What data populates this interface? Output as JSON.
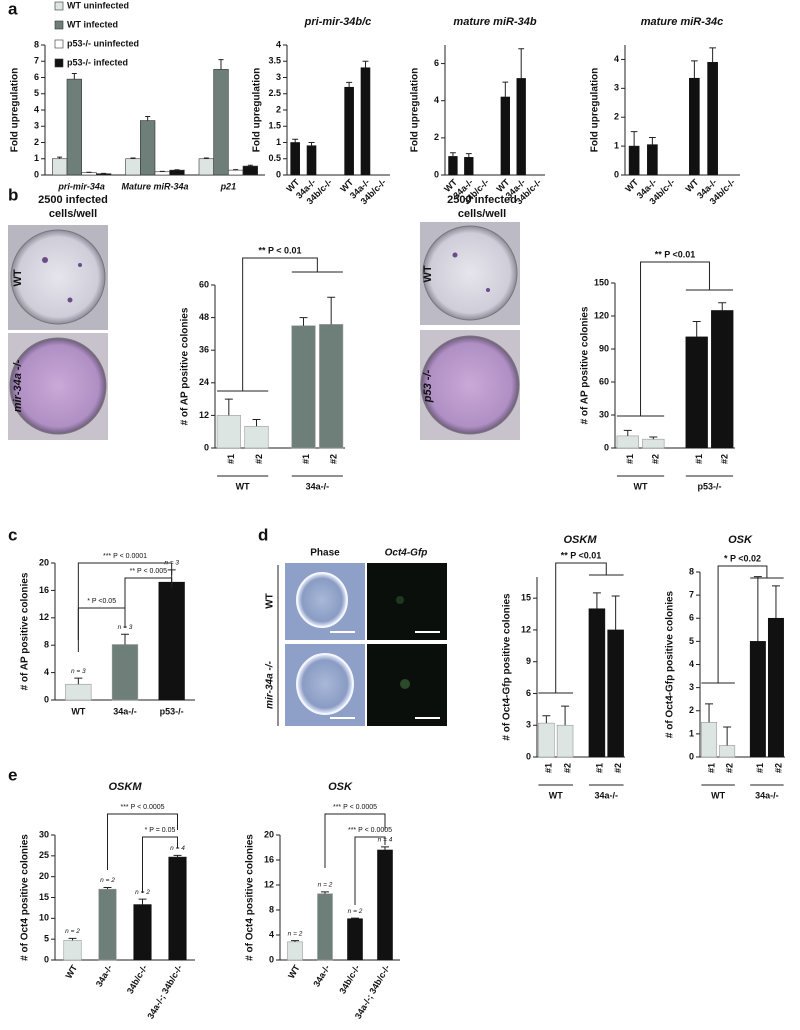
{
  "panels": [
    "a",
    "b",
    "c",
    "d",
    "e"
  ],
  "image_texts": {
    "b_left_title": [
      "2500 infected",
      "cells/well"
    ],
    "b_left_rows": [
      "WT",
      "mir-34a -/-"
    ],
    "b_right_title": [
      "2500 infected",
      "cells/well"
    ],
    "b_right_rows": [
      "WT",
      "p53 -/-"
    ],
    "d_columns": [
      "Phase",
      "Oct4-Gfp"
    ],
    "d_rows": [
      "WT",
      "mir-34a -/-"
    ]
  },
  "chart_data": [
    {
      "type": "grouped_bar",
      "ylabel": "Fold upregulation",
      "categories": [
        "pri-mir-34a",
        "Mature miR-34a",
        "p21"
      ],
      "series": [
        {
          "name": "WT uninfected",
          "color": "#dde5e3",
          "values": [
            1.0,
            1.0,
            1.0
          ],
          "errors": [
            0.1,
            0.05,
            0.05
          ]
        },
        {
          "name": "WT infected",
          "color": "#6e7e79",
          "values": [
            5.9,
            3.35,
            6.5
          ],
          "errors": [
            0.35,
            0.25,
            0.6
          ]
        },
        {
          "name": "p53-/- uninfected",
          "color": "#ffffff",
          "values": [
            0.15,
            0.2,
            0.3
          ],
          "errors": [
            0.02,
            0.02,
            0.03
          ]
        },
        {
          "name": "p53-/- infected",
          "color": "#111111",
          "values": [
            0.08,
            0.3,
            0.55
          ],
          "errors": [
            0.02,
            0.02,
            0.05
          ]
        }
      ],
      "legend": "upper left",
      "ylim": [
        0,
        8
      ],
      "yticks": [
        0,
        1,
        2,
        3,
        4,
        5,
        6,
        7,
        8
      ]
    },
    {
      "type": "bar",
      "title": "pri-mir-34b/c",
      "ylabel": "Fold upregulation",
      "categories": [
        "WT",
        "34a-/-",
        "34b/c-/-",
        "WT",
        "34a-/-",
        "34b/c-/-"
      ],
      "values": [
        1.0,
        0.9,
        0,
        2.7,
        3.3,
        0
      ],
      "errors": [
        0.1,
        0.1,
        0,
        0.15,
        0.2,
        0
      ],
      "colors": [
        "#111111",
        "#111111",
        "#111111",
        "#111111",
        "#111111",
        "#111111"
      ],
      "ylim": [
        0,
        4
      ],
      "yticks": [
        0,
        0.5,
        1,
        1.5,
        2,
        2.5,
        3,
        3.5,
        4
      ]
    },
    {
      "type": "bar",
      "title": "mature miR-34b",
      "ylabel": "Fold upregulation",
      "categories": [
        "WT",
        "34a-/-",
        "34b/c-/-",
        "WT",
        "34a-/-",
        "34b/c-/-"
      ],
      "values": [
        1.0,
        0.95,
        0,
        4.2,
        5.2,
        0
      ],
      "errors": [
        0.2,
        0.2,
        0,
        0.8,
        1.6,
        0
      ],
      "colors": [
        "#111111",
        "#111111",
        "#111111",
        "#111111",
        "#111111",
        "#111111"
      ],
      "ylim": [
        0,
        7
      ],
      "yticks": [
        0,
        2,
        4,
        6
      ]
    },
    {
      "type": "bar",
      "title": "mature miR-34c",
      "ylabel": "Fold upregulation",
      "categories": [
        "WT",
        "34a-/-",
        "34b/c-/-",
        "WT",
        "34a-/-",
        "34b/c-/-"
      ],
      "values": [
        1.0,
        1.05,
        0,
        3.35,
        3.9,
        0
      ],
      "errors": [
        0.5,
        0.25,
        0,
        0.6,
        0.5,
        0
      ],
      "colors": [
        "#111111",
        "#111111",
        "#111111",
        "#111111",
        "#111111",
        "#111111"
      ],
      "ylim": [
        0,
        4.5
      ],
      "yticks": [
        0,
        1,
        2,
        3,
        4
      ]
    },
    {
      "type": "bar",
      "ylabel": "# of AP positive colonies",
      "categories": [
        "#1",
        "#2",
        "#1",
        "#2"
      ],
      "groups": [
        "WT",
        "34a-/-"
      ],
      "values": [
        12,
        8,
        45,
        45.5
      ],
      "errors": [
        6,
        2.5,
        3,
        10
      ],
      "colors": [
        "#dde5e3",
        "#dde5e3",
        "#6e7e79",
        "#6e7e79"
      ],
      "annotations": [
        "** P < 0.01"
      ],
      "ylim": [
        0,
        60
      ],
      "yticks": [
        0,
        12,
        24,
        36,
        48,
        60
      ]
    },
    {
      "type": "bar",
      "ylabel": "# of AP positive colonies",
      "categories": [
        "#1",
        "#2",
        "#1",
        "#2"
      ],
      "groups": [
        "WT",
        "p53-/-"
      ],
      "values": [
        11,
        8,
        101,
        125
      ],
      "errors": [
        5,
        2,
        14,
        7
      ],
      "colors": [
        "#dde5e3",
        "#dde5e3",
        "#111111",
        "#111111"
      ],
      "annotations": [
        "** P <0.01"
      ],
      "ylim": [
        0,
        150
      ],
      "yticks": [
        0,
        30,
        60,
        90,
        120,
        150
      ]
    },
    {
      "type": "bar",
      "ylabel": "# of AP positive colonies",
      "categories": [
        "WT",
        "34a-/-",
        "p53-/-"
      ],
      "values": [
        2.3,
        8.1,
        17.2
      ],
      "errors": [
        0.9,
        1.5,
        1.8
      ],
      "n_labels": [
        "n = 3",
        "n = 3",
        "n = 3"
      ],
      "colors": [
        "#dde5e3",
        "#6e7e79",
        "#111111"
      ],
      "annotations": [
        "*** P < 0.0001",
        "** P < 0.005",
        "* P <0.05"
      ],
      "ylim": [
        0,
        20
      ],
      "yticks": [
        0,
        4,
        8,
        12,
        16,
        20
      ]
    },
    {
      "type": "bar",
      "title": "OSKM",
      "ylabel": "# of Oct4-Gfp positive colonies",
      "categories": [
        "#1",
        "#2",
        "#1",
        "#2"
      ],
      "groups": [
        "WT",
        "34a-/-"
      ],
      "values": [
        3.2,
        3.0,
        14,
        12
      ],
      "errors": [
        0.7,
        1.8,
        1.5,
        3.2
      ],
      "colors": [
        "#dde5e3",
        "#dde5e3",
        "#111111",
        "#111111"
      ],
      "annotations": [
        "** P <0.01"
      ],
      "ylim": [
        0,
        17
      ],
      "yticks": [
        0,
        3,
        6,
        9,
        12,
        15
      ]
    },
    {
      "type": "bar",
      "title": "OSK",
      "ylabel": "# of Oct4-Gfp positive colonies",
      "categories": [
        "#1",
        "#2",
        "#1",
        "#2"
      ],
      "groups": [
        "WT",
        "34a-/-"
      ],
      "values": [
        1.5,
        0.5,
        5,
        6
      ],
      "errors": [
        0.8,
        0.8,
        2.8,
        1.4
      ],
      "colors": [
        "#dde5e3",
        "#dde5e3",
        "#111111",
        "#111111"
      ],
      "annotations": [
        "* P <0.02"
      ],
      "ylim": [
        0,
        8
      ],
      "yticks": [
        0,
        1,
        2,
        3,
        4,
        5,
        6,
        7,
        8
      ]
    },
    {
      "type": "bar",
      "title": "OSKM",
      "ylabel": "# of Oct4 positive colonies",
      "categories": [
        "WT",
        "34a-/-",
        "34b/c-/-",
        "34a-/-; 34b/c-/-"
      ],
      "values": [
        4.7,
        17,
        13.3,
        24.7
      ],
      "errors": [
        0.5,
        0.4,
        1.3,
        0.4
      ],
      "n_labels": [
        "n = 2",
        "n = 2",
        "n = 2",
        "n = 4"
      ],
      "colors": [
        "#dde5e3",
        "#6e7e79",
        "#111111",
        "#111111"
      ],
      "annotations": [
        "*** P < 0.0005",
        "* P = 0.05"
      ],
      "ylim": [
        0,
        30
      ],
      "yticks": [
        0,
        5,
        10,
        15,
        20,
        25,
        30
      ]
    },
    {
      "type": "bar",
      "title": "OSK",
      "ylabel": "# of Oct4 positive colonies",
      "categories": [
        "WT",
        "34a-/-",
        "34b/c-/-",
        "34a-/-; 34b/c-/-"
      ],
      "values": [
        2.9,
        10.6,
        6.6,
        17.6
      ],
      "errors": [
        0.2,
        0.3,
        0.1,
        0.5
      ],
      "n_labels": [
        "n = 2",
        "n = 2",
        "n = 2",
        "n = 4"
      ],
      "colors": [
        "#dde5e3",
        "#6e7e79",
        "#111111",
        "#111111"
      ],
      "annotations": [
        "*** P < 0.0005",
        "*** P < 0.0005"
      ],
      "ylim": [
        0,
        20
      ],
      "yticks": [
        0,
        4,
        8,
        12,
        16,
        20
      ]
    }
  ]
}
